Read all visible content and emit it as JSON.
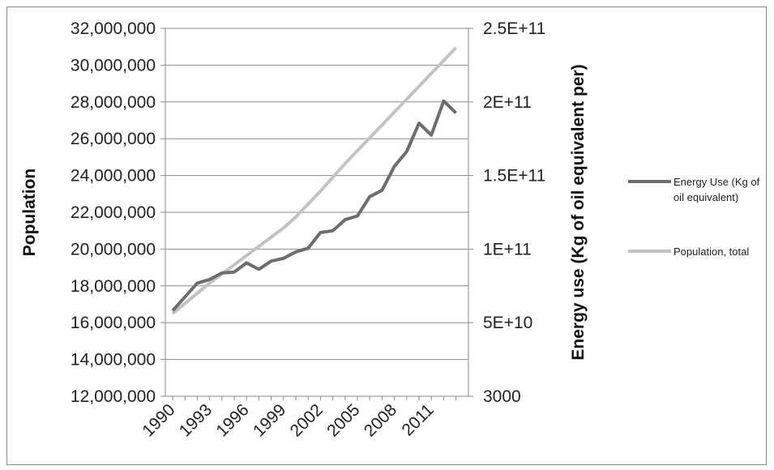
{
  "chart_data": {
    "type": "line",
    "title": "",
    "xlabel": "",
    "ylabel": "Population",
    "y2label": "Energy use (Kg of oil equivalent per)",
    "x_tick_labels": [
      "1990",
      "1993",
      "1996",
      "1999",
      "2002",
      "2005",
      "2008",
      "2011"
    ],
    "x": [
      1990,
      1991,
      1992,
      1993,
      1994,
      1995,
      1996,
      1997,
      1998,
      1999,
      2000,
      2001,
      2002,
      2003,
      2004,
      2005,
      2006,
      2007,
      2008,
      2009,
      2010,
      2011,
      2012,
      2013
    ],
    "ylim": [
      12000000,
      32000000
    ],
    "y_tick_labels": [
      "12,000,000",
      "14,000,000",
      "16,000,000",
      "18,000,000",
      "20,000,000",
      "22,000,000",
      "24,000,000",
      "26,000,000",
      "28,000,000",
      "30,000,000",
      "32,000,000"
    ],
    "y2_tick_labels": [
      "3000",
      "5E+10",
      "1E+11",
      "1.5E+11",
      "2E+11",
      "2.5E+11"
    ],
    "grid": "horizontal",
    "legend_position": "right",
    "series": [
      {
        "name": "Energy Use (Kg of oil equivalent)",
        "color": "#6d6d6d",
        "values": [
          16650000,
          17400000,
          18150000,
          18350000,
          18700000,
          18750000,
          19250000,
          18900000,
          19350000,
          19500000,
          19850000,
          20050000,
          20900000,
          21000000,
          21600000,
          21800000,
          22850000,
          23200000,
          24500000,
          25300000,
          26850000,
          26200000,
          28050000,
          27400000
        ]
      },
      {
        "name": "Population, total",
        "color": "#c2c2c2",
        "values": [
          16500000,
          17050000,
          17600000,
          18150000,
          18650000,
          19150000,
          19650000,
          20150000,
          20650000,
          21150000,
          21750000,
          22450000,
          23150000,
          23900000,
          24650000,
          25350000,
          26050000,
          26750000,
          27450000,
          28150000,
          28850000,
          29550000,
          30250000,
          30950000
        ]
      }
    ]
  }
}
